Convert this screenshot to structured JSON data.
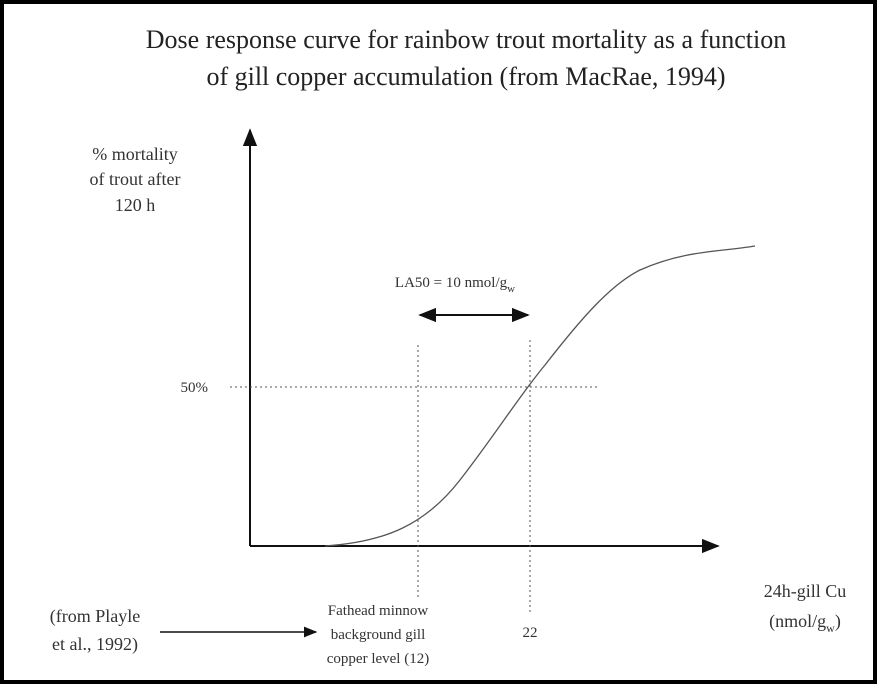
{
  "title": {
    "line1": "Dose response curve for rainbow trout mortality as a function",
    "line2": "of gill copper accumulation (from MacRae, 1994)"
  },
  "y_label": {
    "line1": "% mortality",
    "line2": "of trout after",
    "line3": "120 h"
  },
  "x_label": {
    "line1": "24h-gill Cu",
    "line2_pre": "(nmol/g",
    "line2_sub": "w",
    "line2_post": ")"
  },
  "la50": {
    "text": "LA50 = 10 nmol/g",
    "sub": "w"
  },
  "fifty": "50%",
  "x_mark_22": "22",
  "source_note": {
    "line1": "(from Playle",
    "line2": "et al., 1992)"
  },
  "background_note": {
    "line1": "Fathead minnow",
    "line2": "background gill",
    "line3": "copper level (12)"
  }
}
